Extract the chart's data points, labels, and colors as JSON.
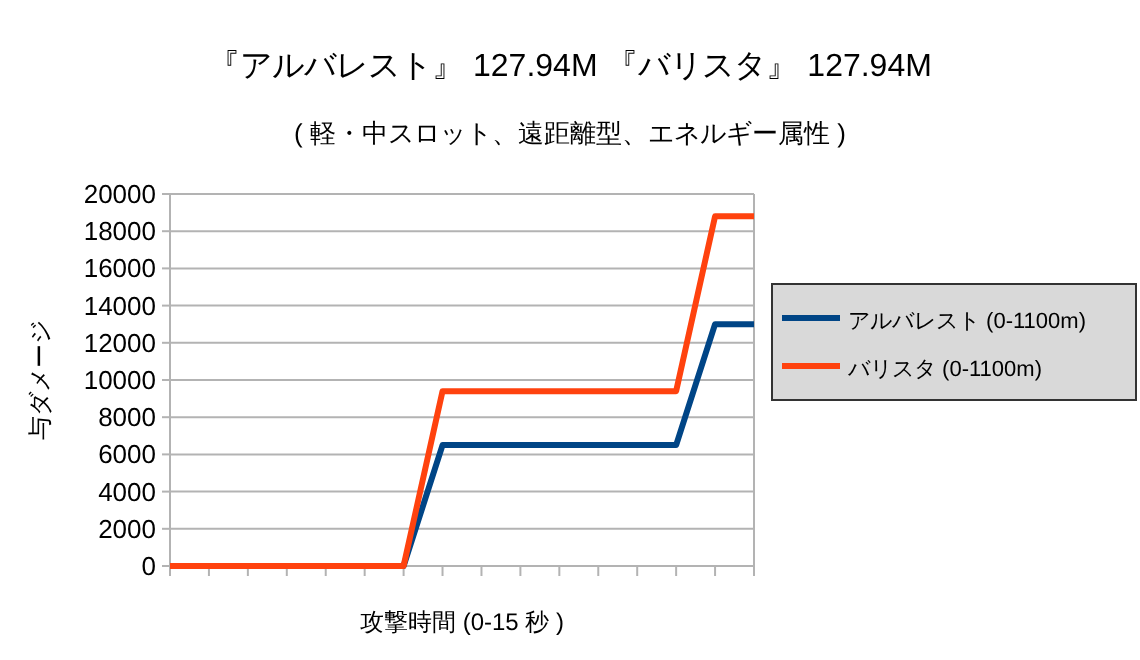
{
  "chart_data": {
    "type": "line",
    "title": "『アルバレスト』 127.94M 『バリスタ』 127.94M",
    "subtitle": "( 軽・中スロット、遠距離型、エネルギー属性 )",
    "xlabel": "攻撃時間 (0-15 秒 )",
    "ylabel": "与ダメージ",
    "categories": [
      null,
      null,
      null,
      null,
      null,
      null,
      null,
      null,
      null,
      null,
      null,
      null,
      null,
      null,
      null,
      null
    ],
    "series": [
      {
        "name": "アルバレスト (0-1100m)",
        "color": "#004586",
        "values": [
          null,
          null,
          null,
          null,
          null,
          0,
          0,
          6500,
          6500,
          6500,
          6500,
          6500,
          6500,
          6500,
          13000,
          13000
        ]
      },
      {
        "name": "バリスタ (0-1100m)",
        "color": "#ff420e",
        "values": [
          0,
          0,
          0,
          0,
          0,
          0,
          0,
          9400,
          9400,
          9400,
          9400,
          9400,
          9400,
          9400,
          18800,
          18800
        ]
      }
    ],
    "ylim": [
      0,
      20000
    ],
    "yticks": [
      0,
      2000,
      4000,
      6000,
      8000,
      10000,
      12000,
      14000,
      16000,
      18000,
      20000
    ],
    "grid": "y",
    "legend": "right",
    "marker": "none",
    "line_style": "solid"
  }
}
